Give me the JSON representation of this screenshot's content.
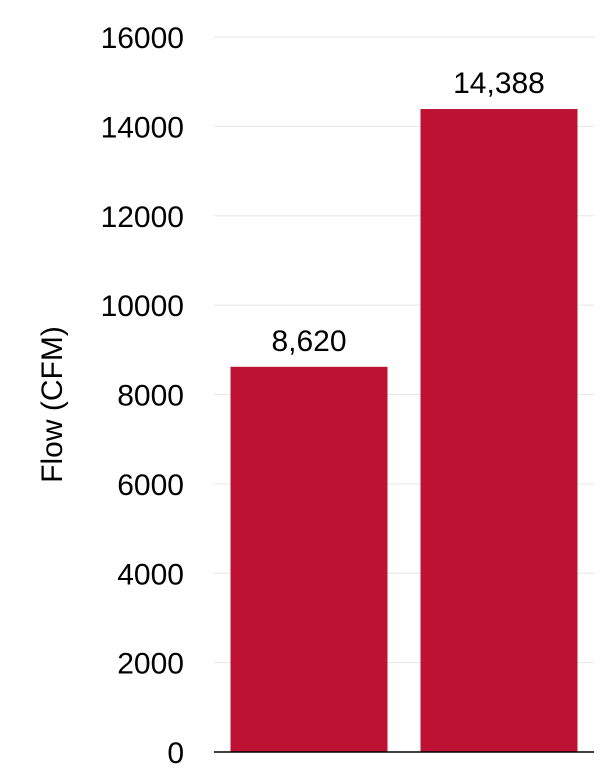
{
  "chart_data": {
    "type": "bar",
    "categories": [
      "",
      ""
    ],
    "values": [
      8620,
      14388
    ],
    "data_labels": [
      "8,620",
      "14,388"
    ],
    "ylabel": "Flow (CFM)",
    "ylim": [
      0,
      16000
    ],
    "yticks": [
      0,
      2000,
      4000,
      6000,
      8000,
      10000,
      12000,
      14000,
      16000
    ],
    "ytick_labels": [
      "0",
      "2000",
      "4000",
      "6000",
      "8000",
      "10000",
      "12000",
      "14000",
      "16000"
    ],
    "grid": true,
    "legend": "none",
    "bar_color": "#be1234"
  }
}
